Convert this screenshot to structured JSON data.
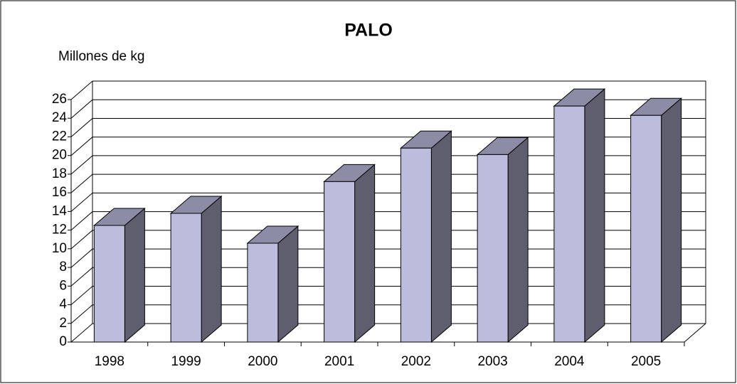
{
  "chart_data": {
    "type": "bar3d",
    "title": "PALO",
    "y_label": "Millones de kg",
    "categories": [
      "1998",
      "1999",
      "2000",
      "2001",
      "2002",
      "2003",
      "2004",
      "2005"
    ],
    "values": [
      12.5,
      13.8,
      10.6,
      17.2,
      20.8,
      20.1,
      25.3,
      24.3
    ],
    "color": "#bcbddc",
    "side_color": "#5f5e6e",
    "top_color": "#8c8ca6",
    "ylim": [
      0,
      26
    ],
    "yticks": [
      0,
      2,
      4,
      6,
      8,
      10,
      12,
      14,
      16,
      18,
      20,
      22,
      24,
      26
    ],
    "grid": true
  }
}
